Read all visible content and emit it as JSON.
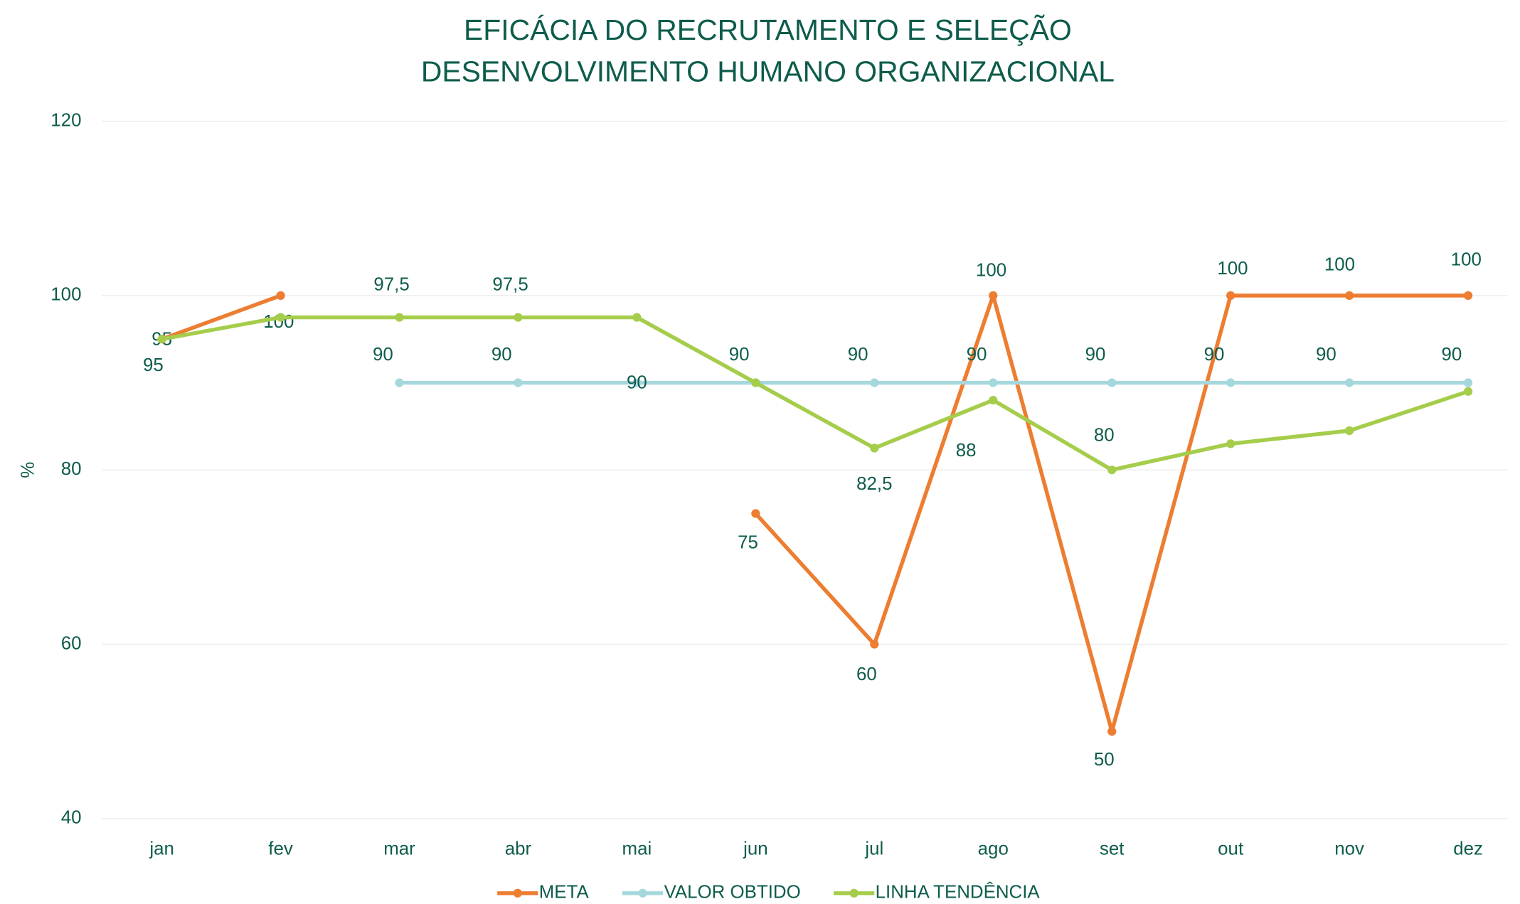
{
  "chart_data": {
    "type": "line",
    "title": [
      "EFICÁCIA DO RECRUTAMENTO E SELEÇÃO",
      "DESENVOLVIMENTO HUMANO ORGANIZACIONAL"
    ],
    "y_label": "%",
    "categories": [
      "jan",
      "fev",
      "mar",
      "abr",
      "mai",
      "jun",
      "jul",
      "ago",
      "set",
      "out",
      "nov",
      "dez"
    ],
    "series": [
      {
        "name": "META",
        "color": "#ED7D31",
        "values": [
          95,
          100,
          null,
          null,
          null,
          75,
          60,
          100,
          50,
          100,
          100,
          100
        ],
        "value_labels": [
          "95",
          "100",
          null,
          null,
          null,
          "75",
          "60",
          "100",
          "50",
          "100",
          "100",
          "100"
        ]
      },
      {
        "name": "VALOR OBTIDO",
        "color": "#A5D8DD",
        "values": [
          null,
          null,
          90,
          90,
          90,
          90,
          90,
          90,
          90,
          90,
          90,
          90
        ],
        "value_labels": [
          null,
          null,
          "90",
          "90",
          "90",
          "90",
          "90",
          "90",
          "90",
          "90",
          "90",
          "90"
        ]
      },
      {
        "name": "LINHA TENDÊNCIA",
        "color": "#A5CD4B",
        "values": [
          95,
          97.5,
          97.5,
          97.5,
          97.5,
          90,
          82.5,
          88,
          80,
          83,
          84.5,
          89
        ],
        "value_labels": [
          "95",
          null,
          "97,5",
          "97,5",
          null,
          null,
          "82,5",
          "88",
          "80",
          null,
          null,
          null
        ]
      }
    ],
    "ylim": [
      40,
      120
    ],
    "yticks": [
      40,
      60,
      80,
      100,
      120
    ],
    "grid": true,
    "legend": "bottom"
  }
}
